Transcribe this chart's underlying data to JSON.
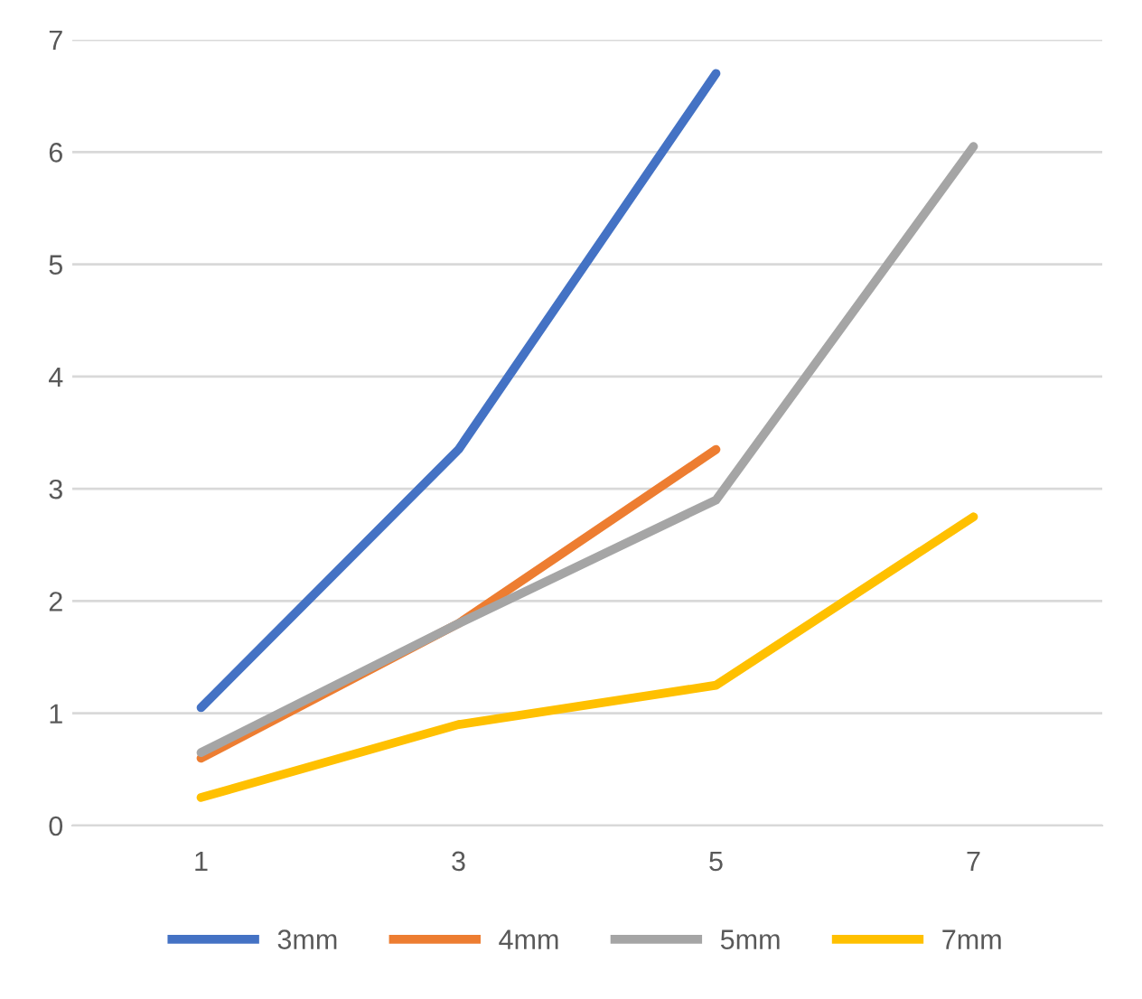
{
  "chart_data": {
    "type": "line",
    "categories": [
      "1",
      "3",
      "5",
      "7"
    ],
    "series": [
      {
        "name": "3mm",
        "color": "#4472c4",
        "values": [
          1.05,
          3.35,
          6.7,
          null
        ]
      },
      {
        "name": "4mm",
        "color": "#ed7d31",
        "values": [
          0.6,
          1.8,
          3.35,
          null
        ]
      },
      {
        "name": "5mm",
        "color": "#a5a5a5",
        "values": [
          0.65,
          1.8,
          2.9,
          6.05
        ]
      },
      {
        "name": "7mm",
        "color": "#ffc000",
        "values": [
          0.25,
          0.9,
          1.25,
          2.75
        ]
      }
    ],
    "ylim": [
      0,
      7
    ],
    "yticks": [
      0,
      1,
      2,
      3,
      4,
      5,
      6,
      7
    ],
    "grid": "y",
    "legend": "bottom",
    "marker": "none",
    "line_style": "solid"
  }
}
